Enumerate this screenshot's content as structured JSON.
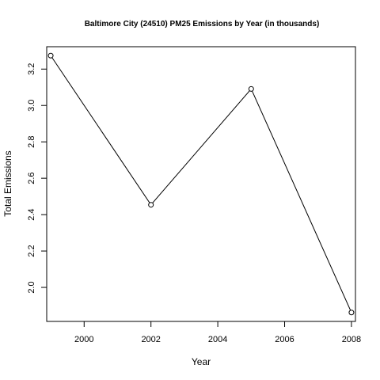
{
  "chart_data": {
    "type": "line",
    "title": "Baltimore City (24510) PM25 Emissions by Year (in thousands)",
    "xlabel": "Year",
    "ylabel": "Total Emissions",
    "x": [
      1999,
      2002,
      2005,
      2008
    ],
    "series": [
      {
        "values": [
          3.274,
          2.454,
          3.091,
          1.862
        ]
      }
    ],
    "xlim": [
      1998.88,
      2008.12
    ],
    "ylim": [
      1.813,
      3.323
    ],
    "xticks": [
      2000,
      2002,
      2004,
      2006,
      2008
    ],
    "yticks": [
      2.0,
      2.2,
      2.4,
      2.6,
      2.8,
      3.0,
      3.2
    ],
    "ytick_labels": [
      "2.0",
      "2.2",
      "2.4",
      "2.6",
      "2.8",
      "3.0",
      "3.2"
    ],
    "grid": false,
    "markers": "open-circle",
    "colors": {
      "line": "#000000",
      "marker_fill": "#ffffff"
    }
  }
}
